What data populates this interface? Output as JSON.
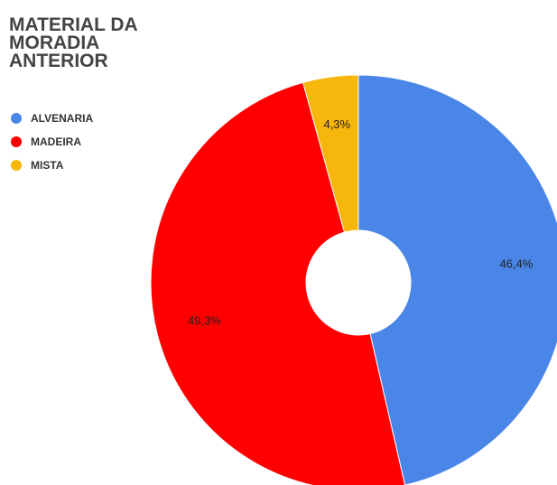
{
  "chart_data": {
    "type": "pie",
    "title": "MATERIAL DA MORADIA ANTERIOR",
    "categories": [
      "ALVENARIA",
      "MADEIRA",
      "MISTA"
    ],
    "values": [
      46.4,
      49.3,
      4.3
    ],
    "value_labels": [
      "46,4%",
      "49,3%",
      "4,3%"
    ],
    "colors": [
      "#4a86e8",
      "#ff0000",
      "#f6b60b"
    ],
    "donut": true,
    "legend": "top-left"
  }
}
